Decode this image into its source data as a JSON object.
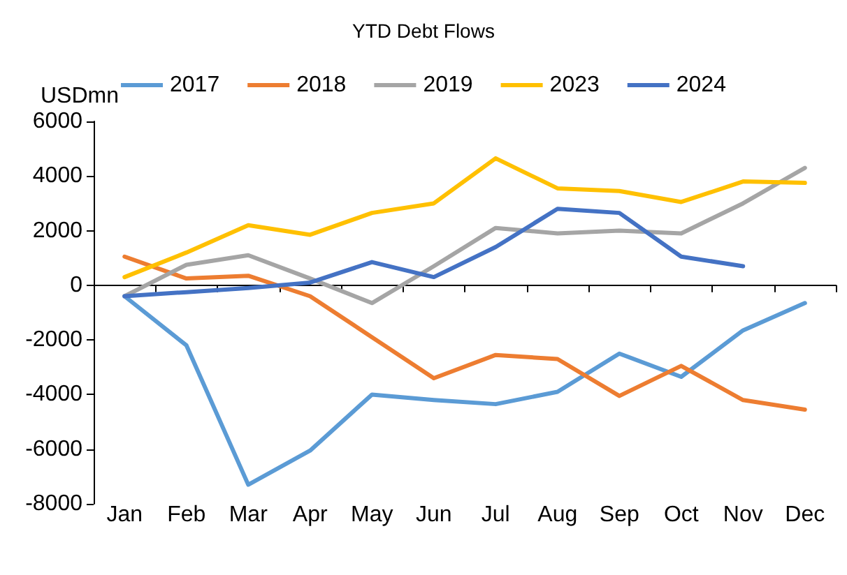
{
  "chart_data": {
    "type": "line",
    "title": "YTD Debt Flows",
    "ylabel": "USDmn",
    "categories": [
      "Jan",
      "Feb",
      "Mar",
      "Apr",
      "May",
      "Jun",
      "Jul",
      "Aug",
      "Sep",
      "Oct",
      "Nov",
      "Dec"
    ],
    "series": [
      {
        "name": "2017",
        "color": "#5b9bd5",
        "values": [
          -400,
          -2200,
          -7300,
          -6050,
          -4000,
          -4200,
          -4350,
          -3900,
          -2500,
          -3350,
          -1650,
          -650
        ]
      },
      {
        "name": "2018",
        "color": "#ed7d31",
        "values": [
          1050,
          250,
          350,
          -400,
          -1900,
          -3400,
          -2550,
          -2700,
          -4050,
          -2950,
          -4200,
          -4550
        ]
      },
      {
        "name": "2019",
        "color": "#a5a5a5",
        "values": [
          -400,
          750,
          1100,
          250,
          -650,
          700,
          2100,
          1900,
          2000,
          1900,
          3000,
          4300
        ]
      },
      {
        "name": "2023",
        "color": "#ffc000",
        "values": [
          300,
          1200,
          2200,
          1850,
          2650,
          3000,
          4650,
          3550,
          3450,
          3050,
          3800,
          3750
        ]
      },
      {
        "name": "2024",
        "color": "#4472c4",
        "values": [
          -400,
          -250,
          -100,
          100,
          850,
          300,
          1400,
          2800,
          2650,
          1050,
          700,
          null
        ]
      }
    ],
    "ylim": [
      -8000,
      6000
    ],
    "yticks": [
      -8000,
      -6000,
      -4000,
      -2000,
      0,
      2000,
      4000,
      6000
    ],
    "legend": "top",
    "marker": "none",
    "line_style": "solid"
  }
}
